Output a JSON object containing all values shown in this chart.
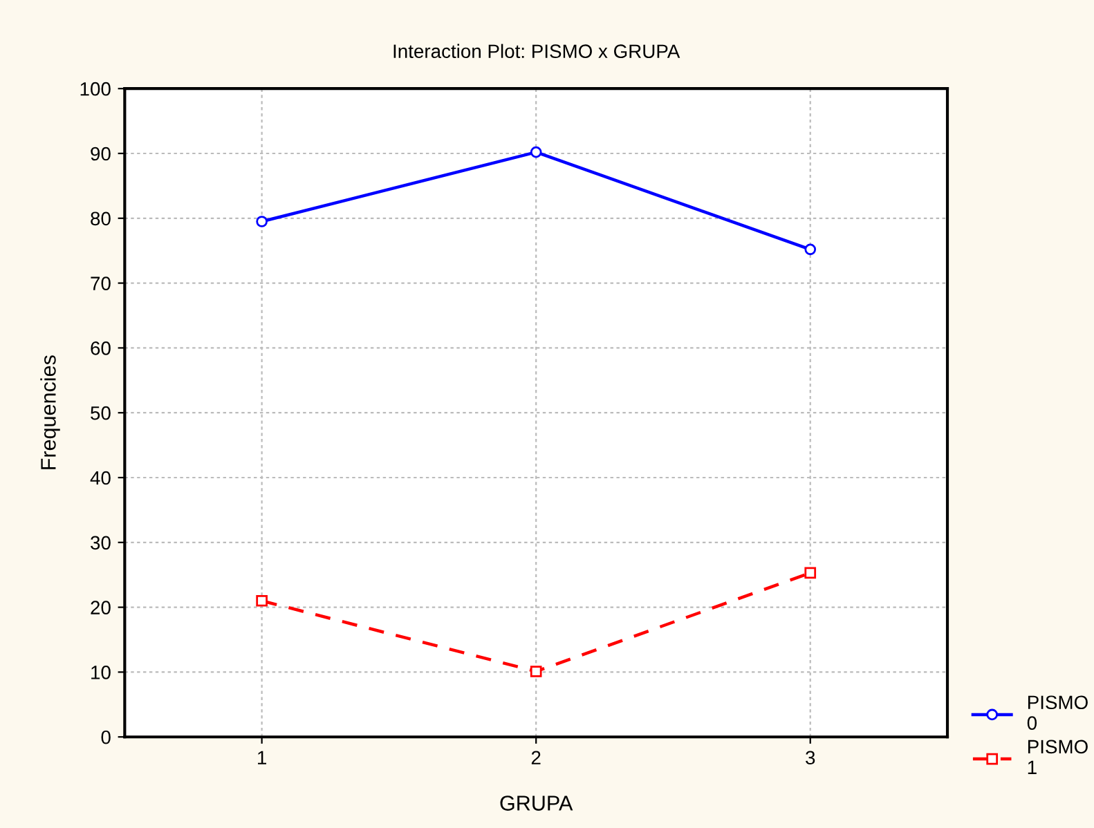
{
  "chart_data": {
    "type": "line",
    "title": "Interaction Plot: PISMO x GRUPA",
    "xlabel": "GRUPA",
    "ylabel": "Frequencies",
    "categories": [
      "1",
      "2",
      "3"
    ],
    "series": [
      {
        "name": "PISMO\n0",
        "color": "#0000ff",
        "values": [
          79.5,
          90.2,
          75.2
        ],
        "marker": "circle",
        "line_style": "solid"
      },
      {
        "name": "PISMO\n1",
        "color": "#ff0000",
        "values": [
          21.0,
          10.1,
          25.3
        ],
        "marker": "square",
        "line_style": "dashed"
      }
    ],
    "ylim": [
      0,
      100
    ],
    "yticks": [
      0,
      10,
      20,
      30,
      40,
      50,
      60,
      70,
      80,
      90,
      100
    ],
    "grid": true,
    "legend": "bottom right"
  }
}
